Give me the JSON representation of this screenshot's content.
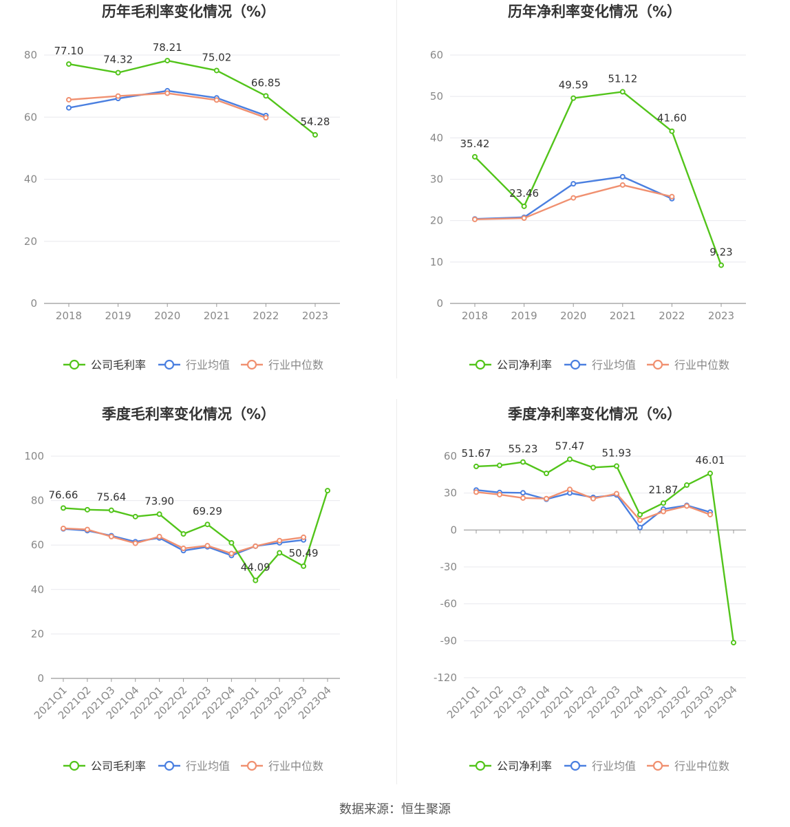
{
  "source": "数据来源：恒生聚源",
  "colors": {
    "company": "#52c41a",
    "avg": "#4a7fe0",
    "median": "#f09070",
    "grid": "#e8e8ee",
    "axis": "#999999",
    "title": "#333333",
    "label": "#333333",
    "tick": "#888888"
  },
  "legend": {
    "company_gross": "公司毛利率",
    "company_net": "公司净利率",
    "avg": "行业均值",
    "median": "行业中位数"
  },
  "chart_data": [
    {
      "id": "annual_gross",
      "type": "line",
      "title": "历年毛利率变化情况（%）",
      "categories": [
        "2018",
        "2019",
        "2020",
        "2021",
        "2022",
        "2023"
      ],
      "ylim": [
        0,
        80
      ],
      "yticks": [
        0,
        20,
        40,
        60,
        80
      ],
      "series": [
        {
          "name": "公司毛利率",
          "key": "company",
          "values": [
            77.1,
            74.32,
            78.21,
            75.02,
            66.85,
            54.28
          ],
          "labels": [
            "77.10",
            "74.32",
            "78.21",
            "75.02",
            "66.85",
            "54.28"
          ]
        },
        {
          "name": "行业均值",
          "key": "avg",
          "values": [
            63.0,
            66.0,
            68.5,
            66.2,
            60.5,
            null
          ]
        },
        {
          "name": "行业中位数",
          "key": "median",
          "values": [
            65.6,
            66.8,
            67.7,
            65.5,
            59.8,
            null
          ]
        }
      ]
    },
    {
      "id": "annual_net",
      "type": "line",
      "title": "历年净利率变化情况（%）",
      "categories": [
        "2018",
        "2019",
        "2020",
        "2021",
        "2022",
        "2023"
      ],
      "ylim": [
        0,
        60
      ],
      "yticks": [
        0,
        10,
        20,
        30,
        40,
        50,
        60
      ],
      "series": [
        {
          "name": "公司净利率",
          "key": "company",
          "values": [
            35.42,
            23.46,
            49.59,
            51.12,
            41.6,
            9.23
          ],
          "labels": [
            "35.42",
            "23.46",
            "49.59",
            "51.12",
            "41.60",
            "9.23"
          ]
        },
        {
          "name": "行业均值",
          "key": "avg",
          "values": [
            20.4,
            20.8,
            28.9,
            30.6,
            25.3,
            null
          ]
        },
        {
          "name": "行业中位数",
          "key": "median",
          "values": [
            20.3,
            20.6,
            25.5,
            28.6,
            25.8,
            null
          ]
        }
      ]
    },
    {
      "id": "quarterly_gross",
      "type": "line",
      "title": "季度毛利率变化情况（%）",
      "categories": [
        "2021Q1",
        "2021Q2",
        "2021Q3",
        "2021Q4",
        "2022Q1",
        "2022Q2",
        "2022Q3",
        "2022Q4",
        "2023Q1",
        "2023Q2",
        "2023Q3",
        "2023Q4"
      ],
      "ylim": [
        0,
        100
      ],
      "yticks": [
        0,
        20,
        40,
        60,
        80,
        100
      ],
      "series": [
        {
          "name": "公司毛利率",
          "key": "company",
          "values": [
            76.66,
            75.9,
            75.64,
            72.8,
            73.9,
            65.0,
            69.29,
            61.0,
            44.09,
            56.5,
            50.49,
            84.5
          ],
          "labels": [
            "76.66",
            "",
            "75.64",
            "",
            "73.90",
            "",
            "69.29",
            "",
            "44.09",
            "",
            "50.49",
            ""
          ]
        },
        {
          "name": "行业均值",
          "key": "avg",
          "values": [
            67.3,
            66.5,
            64.2,
            61.5,
            63.2,
            57.5,
            59.2,
            55.3,
            59.5,
            61.0,
            62.3,
            null
          ]
        },
        {
          "name": "行业中位数",
          "key": "median",
          "values": [
            67.5,
            67.0,
            63.8,
            60.8,
            63.8,
            58.5,
            59.7,
            56.2,
            59.5,
            62.0,
            63.5,
            null
          ]
        }
      ]
    },
    {
      "id": "quarterly_net",
      "type": "line",
      "title": "季度净利率变化情况（%）",
      "categories": [
        "2021Q1",
        "2021Q2",
        "2021Q3",
        "2021Q4",
        "2022Q1",
        "2022Q2",
        "2022Q3",
        "2022Q4",
        "2023Q1",
        "2023Q2",
        "2023Q3",
        "2023Q4"
      ],
      "ylim": [
        -120,
        60
      ],
      "yticks": [
        -120,
        -90,
        -60,
        -30,
        0,
        30,
        60
      ],
      "series": [
        {
          "name": "公司净利率",
          "key": "company",
          "values": [
            51.67,
            52.5,
            55.23,
            46.0,
            57.47,
            50.8,
            51.93,
            12.5,
            21.87,
            36.5,
            46.01,
            -91.5
          ],
          "labels": [
            "51.67",
            "",
            "55.23",
            "",
            "57.47",
            "",
            "51.93",
            "",
            "21.87",
            "",
            "46.01",
            ""
          ]
        },
        {
          "name": "行业均值",
          "key": "avg",
          "values": [
            32.5,
            30.5,
            30.2,
            25.0,
            30.0,
            26.5,
            28.5,
            2.0,
            17.0,
            20.0,
            14.5,
            null
          ]
        },
        {
          "name": "行业中位数",
          "key": "median",
          "values": [
            30.8,
            28.8,
            26.0,
            25.5,
            33.0,
            25.5,
            29.5,
            8.0,
            15.0,
            19.5,
            12.5,
            null
          ]
        }
      ]
    }
  ]
}
